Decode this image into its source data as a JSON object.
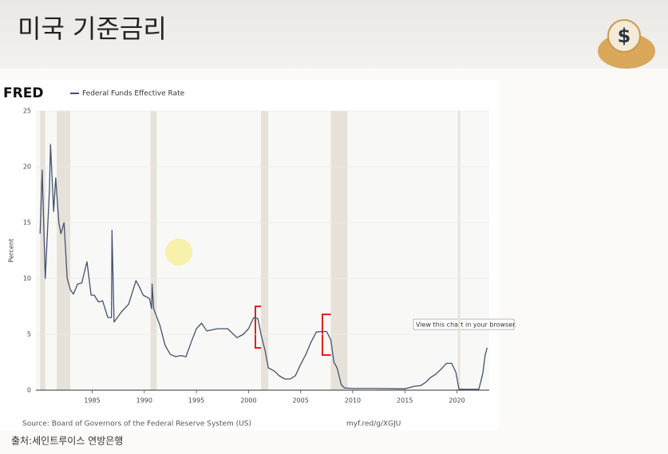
{
  "slide": {
    "title": "미국 기준금리",
    "caption": "출처:세인트루이스 연방은행"
  },
  "chart_data": {
    "type": "line",
    "logo": "FRED",
    "ylabel": "Percent",
    "source": "Source: Board of Governors of the Federal Reserve System (US)",
    "link": "myf.red/g/XGJU",
    "tooltip": "View this chart in your browser.",
    "xlim": [
      1979.6,
      2023.1
    ],
    "xticks": [
      1985,
      1990,
      1995,
      2000,
      2005,
      2010,
      2015,
      2020
    ],
    "ylim": [
      0,
      25
    ],
    "yticks": [
      0,
      5,
      10,
      15,
      20,
      25
    ],
    "grid": true,
    "recessions": [
      [
        1980.0,
        1980.5
      ],
      [
        1981.6,
        1982.9
      ],
      [
        1990.6,
        1991.2
      ],
      [
        2001.2,
        2001.9
      ],
      [
        2007.9,
        2009.5
      ],
      [
        2020.1,
        2020.3
      ]
    ],
    "x": [
      1980.0,
      1980.2,
      1980.5,
      1980.9,
      1981.0,
      1981.3,
      1981.5,
      1981.8,
      1982.0,
      1982.3,
      1982.6,
      1982.9,
      1983.2,
      1983.6,
      1984.0,
      1984.5,
      1984.9,
      1985.2,
      1985.6,
      1986.0,
      1986.5,
      1986.85,
      1986.9,
      1987.1,
      1987.8,
      1988.5,
      1989.2,
      1989.5,
      1989.9,
      1990.5,
      1990.7,
      1990.75,
      1990.9,
      1991.5,
      1992.0,
      1992.5,
      1993.0,
      1993.5,
      1994.0,
      1994.5,
      1995.0,
      1995.5,
      1996.0,
      1997.0,
      1998.0,
      1998.9,
      1999.5,
      2000.0,
      2000.5,
      2000.9,
      2001.2,
      2001.6,
      2001.9,
      2002.5,
      2003.0,
      2003.5,
      2004.0,
      2004.5,
      2005.0,
      2005.5,
      2006.0,
      2006.5,
      2007.0,
      2007.5,
      2007.9,
      2008.2,
      2008.5,
      2008.9,
      2009.2,
      2010.0,
      2012.0,
      2015.0,
      2015.9,
      2016.5,
      2017.0,
      2017.5,
      2018.0,
      2018.5,
      2019.0,
      2019.5,
      2019.9,
      2020.2,
      2021.0,
      2022.1,
      2022.3,
      2022.5,
      2022.7,
      2022.9
    ],
    "series": [
      {
        "name": "Federal Funds Effective Rate",
        "color": "#44526e",
        "values": [
          14,
          19.7,
          10,
          18,
          22,
          16,
          19,
          15,
          14,
          15,
          10,
          9,
          8.6,
          9.5,
          9.6,
          11.5,
          8.5,
          8.5,
          7.9,
          8,
          6.5,
          6.5,
          14.3,
          6.1,
          7,
          7.7,
          9.8,
          9.3,
          8.5,
          8.2,
          7.3,
          9.5,
          7.3,
          5.8,
          4,
          3.2,
          3,
          3.1,
          3,
          4.3,
          5.5,
          6,
          5.3,
          5.5,
          5.5,
          4.7,
          5,
          5.5,
          6.5,
          6.4,
          5,
          3.5,
          2,
          1.7,
          1.25,
          1,
          1,
          1.3,
          2.3,
          3.2,
          4.3,
          5.2,
          5.25,
          5.25,
          4.5,
          2.5,
          2,
          0.5,
          0.2,
          0.15,
          0.15,
          0.12,
          0.35,
          0.4,
          0.7,
          1.15,
          1.45,
          1.9,
          2.4,
          2.4,
          1.6,
          0.08,
          0.08,
          0.08,
          0.8,
          1.6,
          3.1,
          3.8
        ]
      }
    ]
  }
}
